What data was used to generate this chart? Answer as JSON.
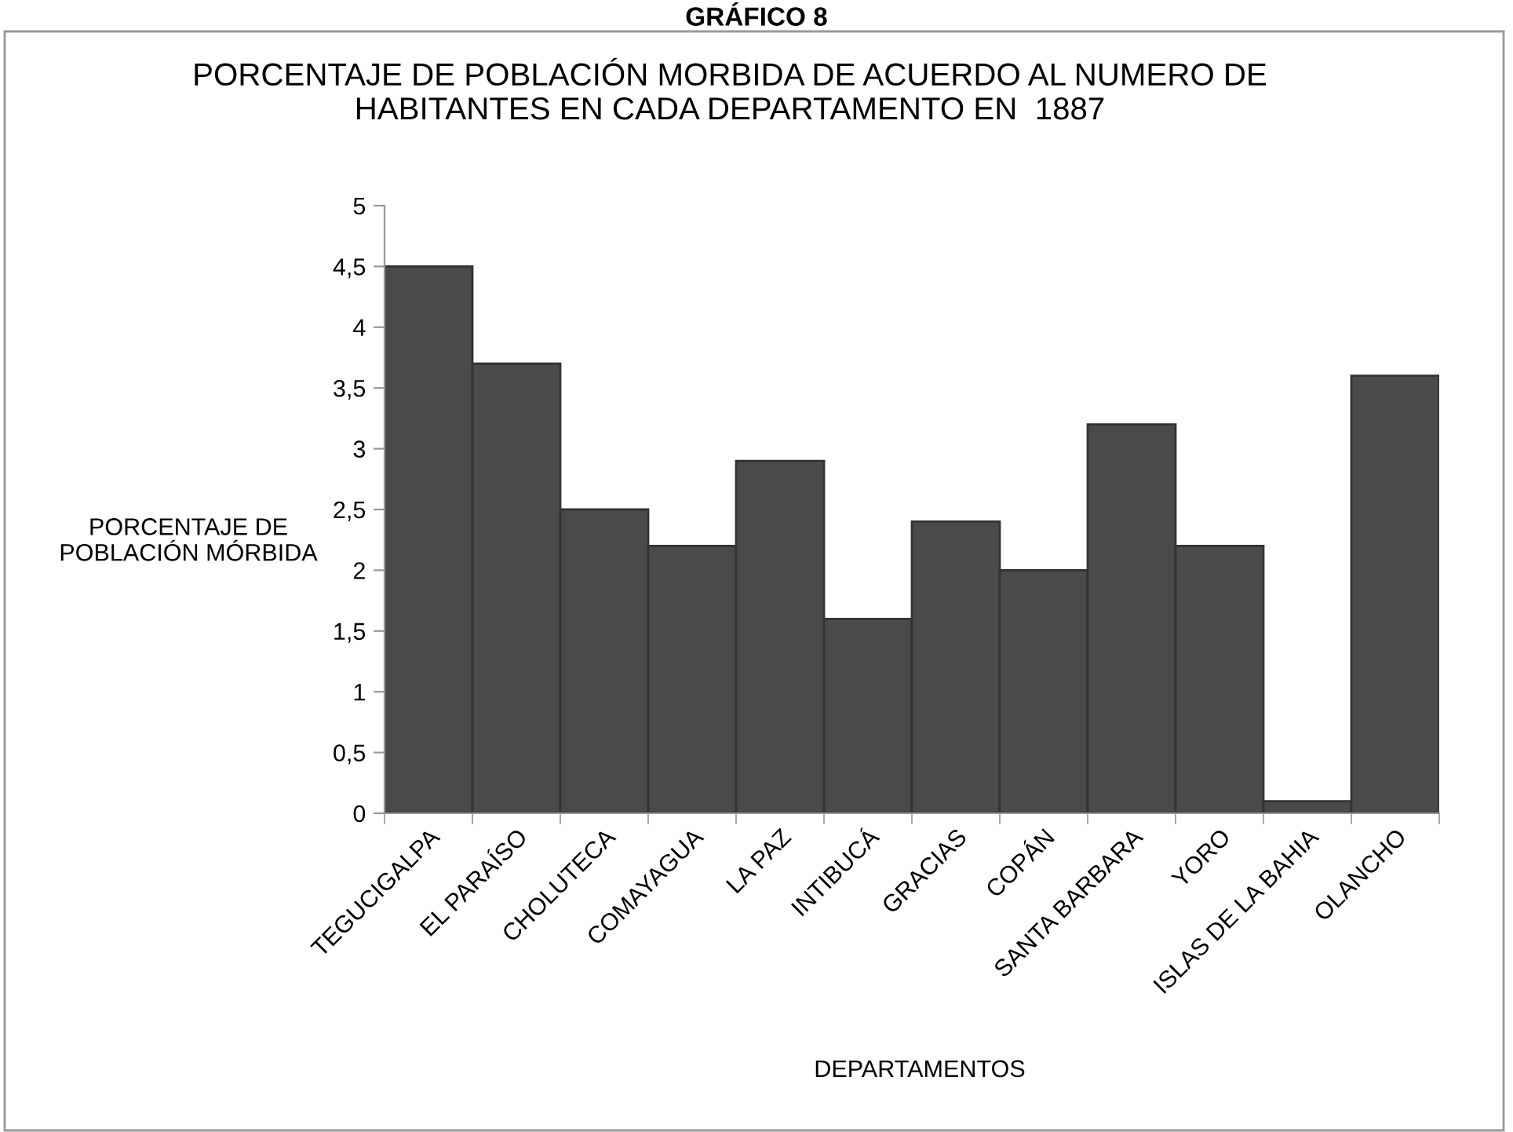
{
  "chart_data": {
    "type": "bar",
    "title": "GRÁFICO 8",
    "subtitle": "PORCENTAJE DE POBLACIÓN MORBIDA DE ACUERDO AL NUMERO DE\nHABITANTES EN CADA DEPARTAMENTO EN  1887",
    "xlabel": "DEPARTAMENTOS",
    "ylabel": "PORCENTAJE DE\nPOBLACIÓN MÓRBIDA",
    "categories": [
      "TEGUCIGALPA",
      "EL PARAÍSO",
      "CHOLUTECA",
      "COMAYAGUA",
      "LA PAZ",
      "INTIBUCÁ",
      "GRACIAS",
      "COPÁN",
      "SANTA BARBARA",
      "YORO",
      "ISLAS DE LA BAHIA",
      "OLANCHO"
    ],
    "values": [
      4.5,
      3.7,
      2.5,
      2.2,
      2.9,
      1.6,
      2.4,
      2.0,
      3.2,
      2.2,
      0.1,
      3.6
    ],
    "color": "#4a4a4a",
    "ylim": [
      0,
      5
    ],
    "yticks": [
      0,
      {
        "value": 0.5,
        "label": "0,5"
      },
      1,
      {
        "value": 1.5,
        "label": "1,5"
      },
      2,
      {
        "value": 2.5,
        "label": "2,5"
      },
      3,
      {
        "value": 3.5,
        "label": "3,5"
      },
      4,
      {
        "value": 4.5,
        "label": "4,5"
      },
      5
    ],
    "grid": false,
    "legend": false
  }
}
